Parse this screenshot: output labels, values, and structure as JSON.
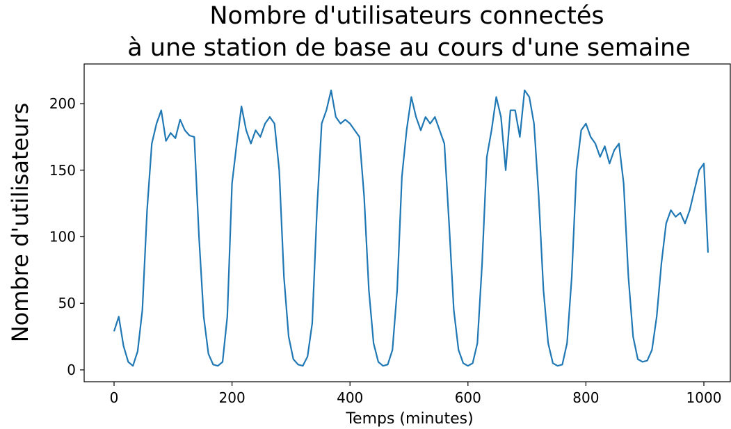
{
  "chart_data": {
    "type": "line",
    "title": [
      "Nombre d'utilisateurs connectés",
      "à une station de base au cours d'une semaine"
    ],
    "xlabel": "Temps (minutes)",
    "ylabel": "Nombre d'utilisateurs",
    "xlim": [
      -50.7,
      1044.8
    ],
    "ylim": [
      -8.9,
      229.8
    ],
    "xticks": [
      0,
      200,
      400,
      600,
      800,
      1000
    ],
    "yticks": [
      0,
      50,
      100,
      150,
      200
    ],
    "x": [
      0,
      8,
      16,
      24,
      32,
      40,
      48,
      56,
      64,
      72,
      80,
      88,
      96,
      104,
      112,
      120,
      128,
      136,
      144,
      152,
      160,
      168,
      176,
      184,
      192,
      200,
      208,
      216,
      224,
      232,
      240,
      248,
      256,
      264,
      272,
      280,
      288,
      296,
      304,
      312,
      320,
      328,
      336,
      344,
      352,
      360,
      368,
      376,
      384,
      392,
      400,
      408,
      416,
      424,
      432,
      440,
      448,
      456,
      464,
      472,
      480,
      488,
      496,
      504,
      512,
      520,
      528,
      536,
      544,
      552,
      560,
      568,
      576,
      584,
      592,
      600,
      608,
      616,
      624,
      632,
      640,
      648,
      656,
      664,
      672,
      680,
      688,
      696,
      704,
      712,
      720,
      728,
      736,
      744,
      752,
      760,
      768,
      776,
      784,
      792,
      800,
      808,
      816,
      824,
      832,
      840,
      848,
      856,
      864,
      872,
      880,
      888,
      896,
      904,
      912,
      920,
      928,
      936,
      944,
      952,
      960,
      968,
      976,
      984,
      992,
      1000,
      1007
    ],
    "series": [
      {
        "name": "utilisateurs",
        "color": "#1f77b4",
        "values": [
          29,
          40,
          18,
          6,
          3,
          14,
          45,
          120,
          170,
          185,
          195,
          172,
          178,
          174,
          188,
          180,
          176,
          175,
          100,
          40,
          12,
          4,
          3,
          6,
          40,
          140,
          170,
          198,
          180,
          170,
          180,
          175,
          185,
          190,
          185,
          150,
          70,
          25,
          8,
          4,
          3,
          10,
          35,
          120,
          185,
          195,
          210,
          190,
          185,
          188,
          185,
          180,
          175,
          130,
          60,
          20,
          6,
          3,
          4,
          15,
          60,
          145,
          180,
          205,
          190,
          180,
          190,
          185,
          190,
          180,
          170,
          110,
          45,
          15,
          5,
          3,
          5,
          20,
          80,
          160,
          180,
          205,
          190,
          150,
          195,
          195,
          175,
          210,
          205,
          185,
          130,
          60,
          20,
          5,
          3,
          4,
          20,
          70,
          150,
          180,
          185,
          175,
          170,
          160,
          168,
          155,
          165,
          170,
          140,
          70,
          25,
          8,
          6,
          7,
          15,
          40,
          80,
          110,
          120,
          115,
          118,
          110,
          120,
          135,
          150,
          155,
          88
        ]
      }
    ]
  }
}
